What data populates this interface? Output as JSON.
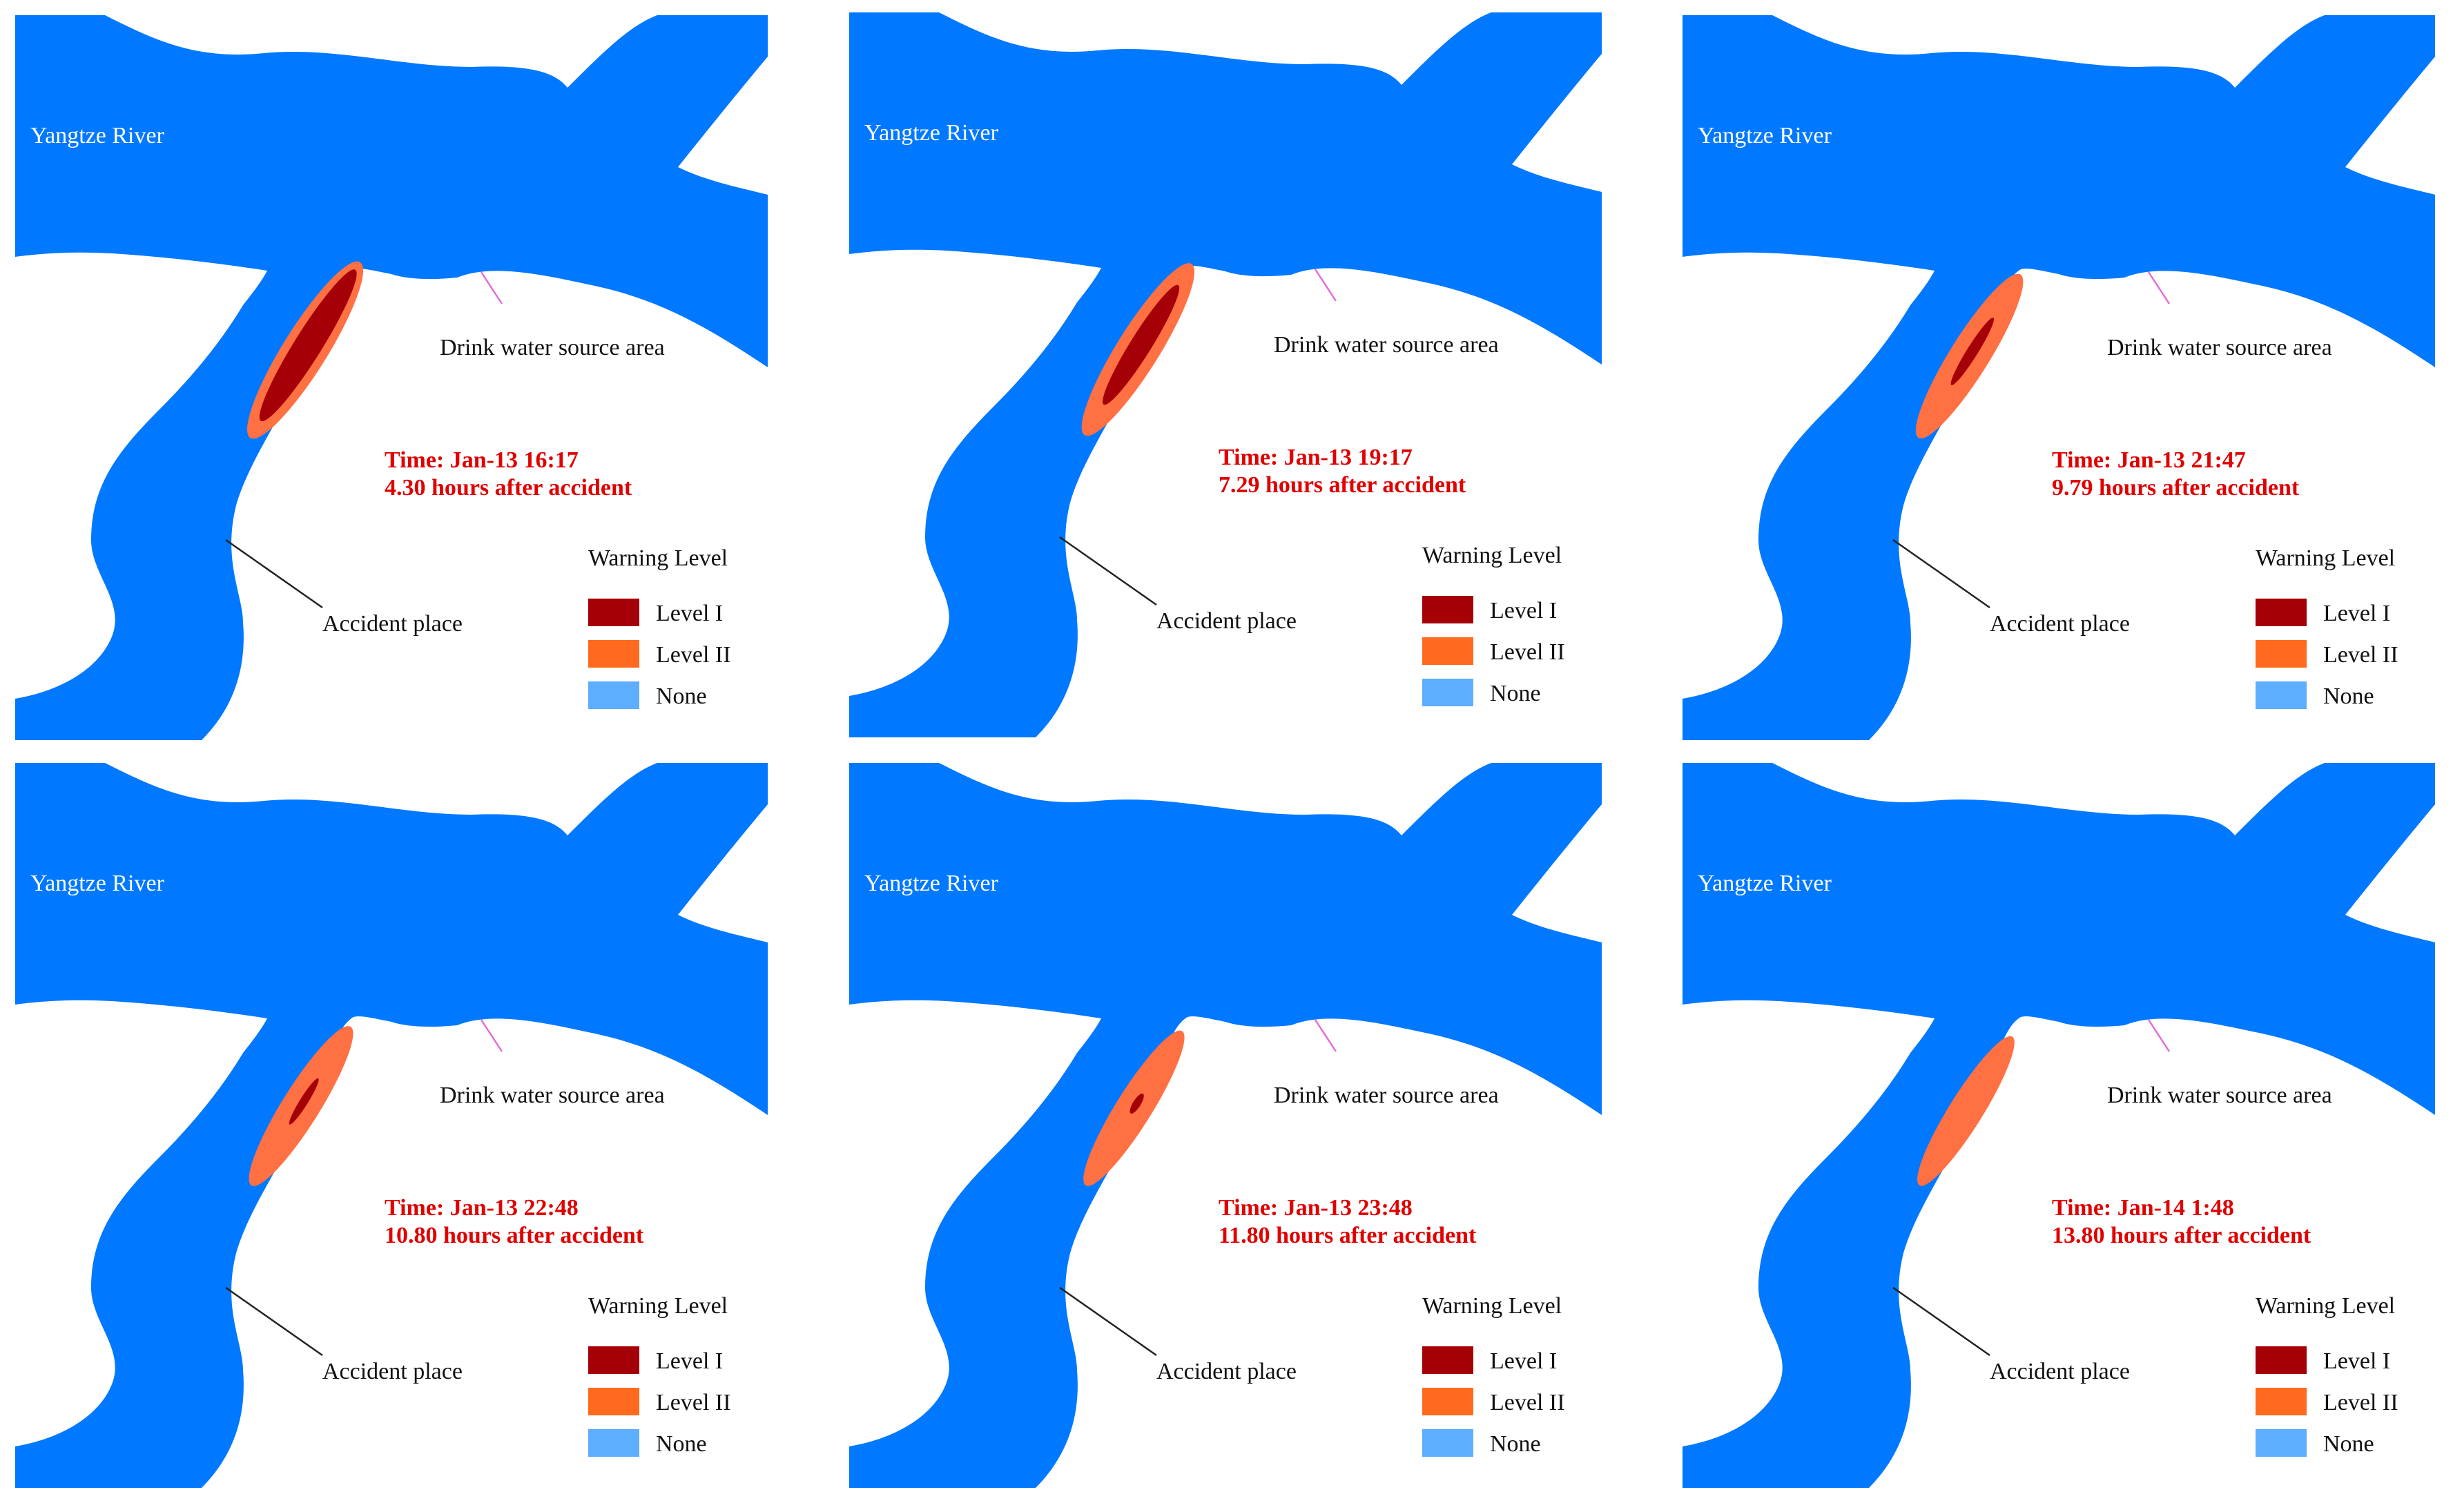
{
  "colors": {
    "river": "#0078FF",
    "level_1": "#A50008",
    "level_2": "#FF6A1E",
    "none": "#5DAEFF",
    "plume_inner": "#A50008",
    "plume_outer": "#FF7043",
    "time_text": "#E00000",
    "leader_line": "#222222",
    "source_line": "#E36BD8"
  },
  "legend": {
    "title": "Warning Level",
    "items": [
      {
        "label": "Level I",
        "color": "#A50008"
      },
      {
        "label": "Level II",
        "color": "#FF6A1E"
      },
      {
        "label": "None",
        "color": "#5DAEFF"
      }
    ]
  },
  "labels": {
    "river": "Yangtze River",
    "drink_source": "Drink water source area",
    "accident": "Accident place"
  },
  "panels": [
    {
      "time": "Time: Jan-13 16:17",
      "elapsed": "4.30 hours after accident",
      "plume_stage": 1.0,
      "core_stage": 1.0
    },
    {
      "time": "Time: Jan-13 19:17",
      "elapsed": "7.29 hours after accident",
      "plume_stage": 0.92,
      "core_stage": 0.8
    },
    {
      "time": "Time: Jan-13 21:47",
      "elapsed": "9.79 hours after accident",
      "plume_stage": 0.78,
      "core_stage": 0.45
    },
    {
      "time": "Time: Jan-13 22:48",
      "elapsed": "10.80 hours after accident",
      "plume_stage": 0.7,
      "core_stage": 0.3
    },
    {
      "time": "Time: Jan-13 23:48",
      "elapsed": "11.80 hours after accident",
      "plume_stage": 0.62,
      "core_stage": 0.1
    },
    {
      "time": "Time: Jan-14 1:48",
      "elapsed": "13.80 hours after accident",
      "plume_stage": 0.52,
      "core_stage": 0.0
    }
  ]
}
